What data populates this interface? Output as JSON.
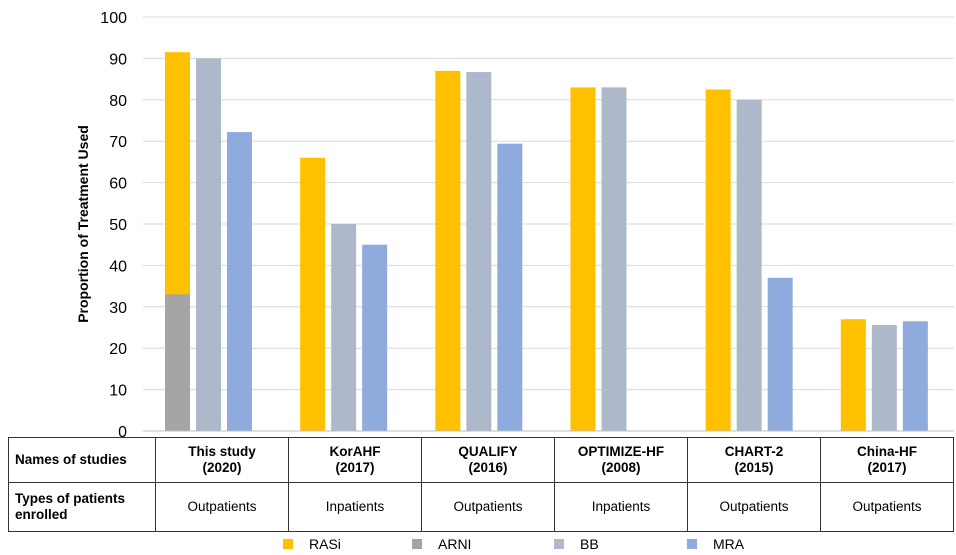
{
  "chart_data": {
    "type": "bar",
    "title": "",
    "ylabel": "Proportion of Treatment Used",
    "ylim": [
      0,
      100
    ],
    "yticks": [
      0,
      10,
      20,
      30,
      40,
      50,
      60,
      70,
      80,
      90,
      100
    ],
    "grid": true,
    "legend_position": "bottom",
    "categories": [
      "This study (2020)",
      "KorAHF (2017)",
      "QUALIFY (2016)",
      "OPTIMIZE-HF (2008)",
      "CHART-2 (2015)",
      "China-HF (2017)"
    ],
    "series": [
      {
        "name": "RASi",
        "color": "#FFC000",
        "values": [
          91.5,
          66,
          87,
          83,
          82.5,
          27
        ]
      },
      {
        "name": "ARNI",
        "color": "#A5A5A5",
        "values": [
          33,
          null,
          null,
          null,
          null,
          null
        ]
      },
      {
        "name": "BB",
        "color": "#ADB9CA",
        "values": [
          90,
          50,
          86.7,
          83,
          80,
          25.6
        ]
      },
      {
        "name": "MRA",
        "color": "#8FAADC",
        "values": [
          72.2,
          45,
          69.4,
          null,
          37,
          26.5
        ]
      }
    ]
  },
  "table": {
    "row1_header": "Names of studies",
    "row2_header": "Types of patients enrolled",
    "studies": [
      {
        "name": "This study",
        "year": "(2020)",
        "type": "Outpatients"
      },
      {
        "name": "KorAHF",
        "year": "(2017)",
        "type": "Inpatients"
      },
      {
        "name": "QUALIFY",
        "year": "(2016)",
        "type": "Outpatients"
      },
      {
        "name": "OPTIMIZE-HF",
        "year": "(2008)",
        "type": "Inpatients"
      },
      {
        "name": "CHART-2",
        "year": "(2015)",
        "type": "Outpatients"
      },
      {
        "name": "China-HF",
        "year": "(2017)",
        "type": "Outpatients"
      }
    ]
  },
  "legend": {
    "items": [
      {
        "label": "RASi",
        "color": "#FFC000"
      },
      {
        "label": "ARNI",
        "color": "#A5A5A5"
      },
      {
        "label": "BB",
        "color": "#ADB9CA"
      },
      {
        "label": "MRA",
        "color": "#8FAADC"
      }
    ]
  }
}
